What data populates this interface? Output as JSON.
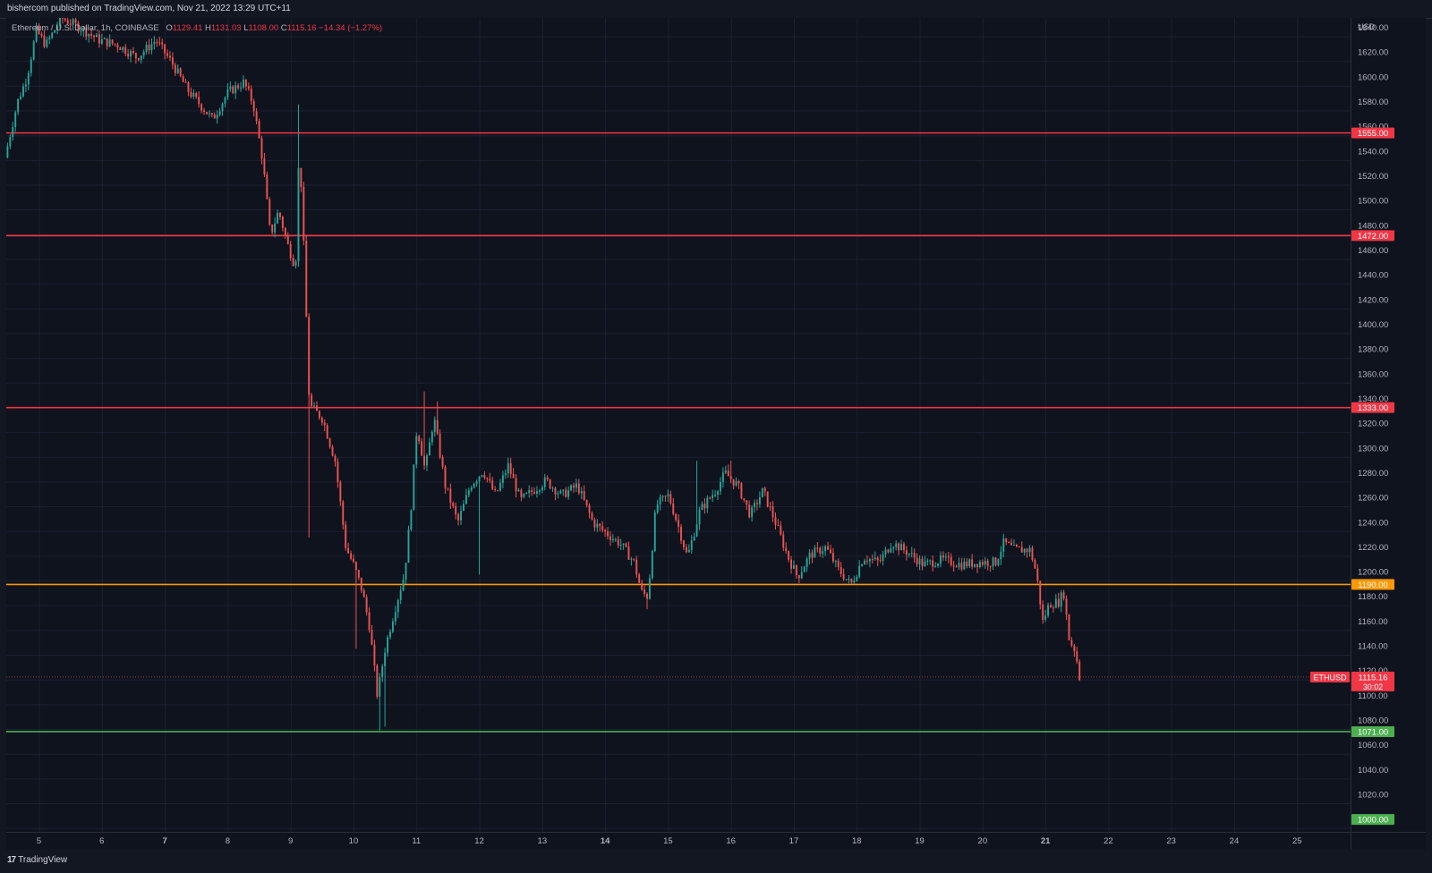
{
  "header": {
    "published": "bishercom published on TradingView.com, Nov 21, 2022 13:29 UTC+11"
  },
  "legend": {
    "symbol": "Ethereum / U.S. Dollar, 1h, COINBASE",
    "open_label": "O",
    "open": "1129.41",
    "high_label": "H",
    "high": "1131.03",
    "low_label": "L",
    "low": "1108.00",
    "close_label": "C",
    "close": "1115.16",
    "change": "−14.34 (−1.27%)"
  },
  "footer": {
    "logo_mark": "17",
    "logo_text": "TradingView"
  },
  "colors": {
    "background": "#0f131e",
    "up": "#26a69a",
    "down": "#ef5350",
    "resistance": "#f23645",
    "key_level": "#ff9800",
    "support": "#4caf50"
  },
  "chart_data": {
    "type": "candlestick",
    "symbol": "ETHUSD",
    "timeframe": "1h",
    "exchange": "COINBASE",
    "currency": "USD",
    "ylim": [
      990,
      1648
    ],
    "y_ticks": [
      1000,
      1020,
      1040,
      1060,
      1080,
      1100,
      1120,
      1140,
      1160,
      1180,
      1200,
      1220,
      1240,
      1260,
      1280,
      1300,
      1320,
      1340,
      1360,
      1380,
      1400,
      1420,
      1440,
      1460,
      1480,
      1500,
      1520,
      1540,
      1560,
      1580,
      1600,
      1620,
      1640
    ],
    "y_tick_labels": [
      "1000.00",
      "1020.00",
      "1040.00",
      "1060.00",
      "1080.00",
      "1100.00",
      "1120.00",
      "1140.00",
      "1160.00",
      "1180.00",
      "1200.00",
      "1220.00",
      "1240.00",
      "1260.00",
      "1280.00",
      "1300.00",
      "1320.00",
      "1340.00",
      "1360.00",
      "1380.00",
      "1400.00",
      "1420.00",
      "1440.00",
      "1460.00",
      "1480.00",
      "1500.00",
      "1520.00",
      "1540.00",
      "1560.00",
      "1580.00",
      "1600.00",
      "1620.00",
      "1640.00"
    ],
    "x_ticks": [
      {
        "label": "5",
        "day": 5,
        "bold": false
      },
      {
        "label": "6",
        "day": 6,
        "bold": false
      },
      {
        "label": "7",
        "day": 7,
        "bold": true
      },
      {
        "label": "8",
        "day": 8,
        "bold": false
      },
      {
        "label": "9",
        "day": 9,
        "bold": false
      },
      {
        "label": "10",
        "day": 10,
        "bold": false
      },
      {
        "label": "11",
        "day": 11,
        "bold": false
      },
      {
        "label": "12",
        "day": 12,
        "bold": false
      },
      {
        "label": "13",
        "day": 13,
        "bold": false
      },
      {
        "label": "14",
        "day": 14,
        "bold": true
      },
      {
        "label": "15",
        "day": 15,
        "bold": false
      },
      {
        "label": "16",
        "day": 16,
        "bold": false
      },
      {
        "label": "17",
        "day": 17,
        "bold": false
      },
      {
        "label": "18",
        "day": 18,
        "bold": false
      },
      {
        "label": "19",
        "day": 19,
        "bold": false
      },
      {
        "label": "20",
        "day": 20,
        "bold": false
      },
      {
        "label": "21",
        "day": 21,
        "bold": true
      },
      {
        "label": "22",
        "day": 22,
        "bold": false
      },
      {
        "label": "23",
        "day": 23,
        "bold": false
      },
      {
        "label": "24",
        "day": 24,
        "bold": false
      },
      {
        "label": "25",
        "day": 25,
        "bold": false
      }
    ],
    "xlim": [
      4.48,
      25.85
    ],
    "horizontal_levels": [
      {
        "price": 1555,
        "label": "1555.00",
        "color": "#f23645"
      },
      {
        "price": 1472,
        "label": "1472.00",
        "color": "#f23645"
      },
      {
        "price": 1333,
        "label": "1333.00",
        "color": "#f23645"
      },
      {
        "price": 1190,
        "label": "1190.00",
        "color": "#ff9800"
      },
      {
        "price": 1071,
        "label": "1071.00",
        "color": "#4caf50"
      },
      {
        "price": 1000,
        "label": "1000.00",
        "color": "#4caf50",
        "line": false
      }
    ],
    "last_price": {
      "price": 1115.16,
      "label": "1115.16",
      "symbol": "ETHUSD",
      "countdown": "30:02"
    },
    "price_path": [
      {
        "day": 4.5,
        "price": 1535
      },
      {
        "day": 4.7,
        "price": 1580
      },
      {
        "day": 4.85,
        "price": 1600
      },
      {
        "day": 5.0,
        "price": 1638
      },
      {
        "day": 5.15,
        "price": 1626
      },
      {
        "day": 5.4,
        "price": 1648
      },
      {
        "day": 5.7,
        "price": 1640
      },
      {
        "day": 6.0,
        "price": 1630
      },
      {
        "day": 6.3,
        "price": 1626
      },
      {
        "day": 6.6,
        "price": 1616
      },
      {
        "day": 6.9,
        "price": 1630
      },
      {
        "day": 7.15,
        "price": 1612
      },
      {
        "day": 7.4,
        "price": 1590
      },
      {
        "day": 7.6,
        "price": 1578
      },
      {
        "day": 7.8,
        "price": 1566
      },
      {
        "day": 8.05,
        "price": 1588
      },
      {
        "day": 8.3,
        "price": 1596
      },
      {
        "day": 8.45,
        "price": 1578
      },
      {
        "day": 8.6,
        "price": 1532
      },
      {
        "day": 8.72,
        "price": 1472
      },
      {
        "day": 8.85,
        "price": 1492
      },
      {
        "day": 9.0,
        "price": 1464
      },
      {
        "day": 9.12,
        "price": 1446
      },
      {
        "day": 9.18,
        "price": 1548
      },
      {
        "day": 9.26,
        "price": 1452
      },
      {
        "day": 9.34,
        "price": 1335
      },
      {
        "day": 9.55,
        "price": 1324
      },
      {
        "day": 9.75,
        "price": 1290
      },
      {
        "day": 9.92,
        "price": 1220
      },
      {
        "day": 10.05,
        "price": 1205
      },
      {
        "day": 10.18,
        "price": 1185
      },
      {
        "day": 10.3,
        "price": 1155
      },
      {
        "day": 10.42,
        "price": 1100
      },
      {
        "day": 10.55,
        "price": 1140
      },
      {
        "day": 10.7,
        "price": 1170
      },
      {
        "day": 10.85,
        "price": 1198
      },
      {
        "day": 10.95,
        "price": 1248
      },
      {
        "day": 11.05,
        "price": 1318
      },
      {
        "day": 11.18,
        "price": 1282
      },
      {
        "day": 11.32,
        "price": 1325
      },
      {
        "day": 11.5,
        "price": 1270
      },
      {
        "day": 11.7,
        "price": 1240
      },
      {
        "day": 11.9,
        "price": 1270
      },
      {
        "day": 12.1,
        "price": 1282
      },
      {
        "day": 12.3,
        "price": 1262
      },
      {
        "day": 12.5,
        "price": 1286
      },
      {
        "day": 12.7,
        "price": 1258
      },
      {
        "day": 12.9,
        "price": 1266
      },
      {
        "day": 13.1,
        "price": 1274
      },
      {
        "day": 13.35,
        "price": 1262
      },
      {
        "day": 13.6,
        "price": 1270
      },
      {
        "day": 13.85,
        "price": 1240
      },
      {
        "day": 14.05,
        "price": 1232
      },
      {
        "day": 14.3,
        "price": 1222
      },
      {
        "day": 14.5,
        "price": 1208
      },
      {
        "day": 14.62,
        "price": 1184
      },
      {
        "day": 14.72,
        "price": 1180
      },
      {
        "day": 14.85,
        "price": 1254
      },
      {
        "day": 15.05,
        "price": 1262
      },
      {
        "day": 15.2,
        "price": 1238
      },
      {
        "day": 15.35,
        "price": 1212
      },
      {
        "day": 15.55,
        "price": 1250
      },
      {
        "day": 15.8,
        "price": 1266
      },
      {
        "day": 15.95,
        "price": 1280
      },
      {
        "day": 16.15,
        "price": 1270
      },
      {
        "day": 16.35,
        "price": 1246
      },
      {
        "day": 16.55,
        "price": 1266
      },
      {
        "day": 16.75,
        "price": 1240
      },
      {
        "day": 16.95,
        "price": 1212
      },
      {
        "day": 17.1,
        "price": 1196
      },
      {
        "day": 17.3,
        "price": 1214
      },
      {
        "day": 17.55,
        "price": 1220
      },
      {
        "day": 17.75,
        "price": 1202
      },
      {
        "day": 17.95,
        "price": 1190
      },
      {
        "day": 18.15,
        "price": 1212
      },
      {
        "day": 18.4,
        "price": 1208
      },
      {
        "day": 18.6,
        "price": 1224
      },
      {
        "day": 18.85,
        "price": 1216
      },
      {
        "day": 19.1,
        "price": 1206
      },
      {
        "day": 19.4,
        "price": 1210
      },
      {
        "day": 19.7,
        "price": 1206
      },
      {
        "day": 20.0,
        "price": 1208
      },
      {
        "day": 20.25,
        "price": 1208
      },
      {
        "day": 20.38,
        "price": 1224
      },
      {
        "day": 20.55,
        "price": 1218
      },
      {
        "day": 20.8,
        "price": 1218
      },
      {
        "day": 20.9,
        "price": 1198
      },
      {
        "day": 21.0,
        "price": 1160
      },
      {
        "day": 21.1,
        "price": 1174
      },
      {
        "day": 21.25,
        "price": 1176
      },
      {
        "day": 21.33,
        "price": 1184
      },
      {
        "day": 21.42,
        "price": 1145
      },
      {
        "day": 21.52,
        "price": 1136
      },
      {
        "day": 21.58,
        "price": 1115
      }
    ],
    "wick_extremes": [
      {
        "day": 9.12,
        "high": 1578
      },
      {
        "day": 9.3,
        "low": 1228
      },
      {
        "day": 10.42,
        "low": 1072
      },
      {
        "day": 10.5,
        "low": 1075
      },
      {
        "day": 10.05,
        "low": 1138
      },
      {
        "day": 11.12,
        "high": 1346
      },
      {
        "day": 11.32,
        "high": 1338
      },
      {
        "day": 12.0,
        "low": 1198
      },
      {
        "day": 15.98,
        "high": 1290
      },
      {
        "day": 15.45,
        "high": 1290
      },
      {
        "day": 14.66,
        "low": 1170
      },
      {
        "day": 21.58,
        "low": 1108
      }
    ],
    "grid": true,
    "legend_position": "top-left"
  }
}
